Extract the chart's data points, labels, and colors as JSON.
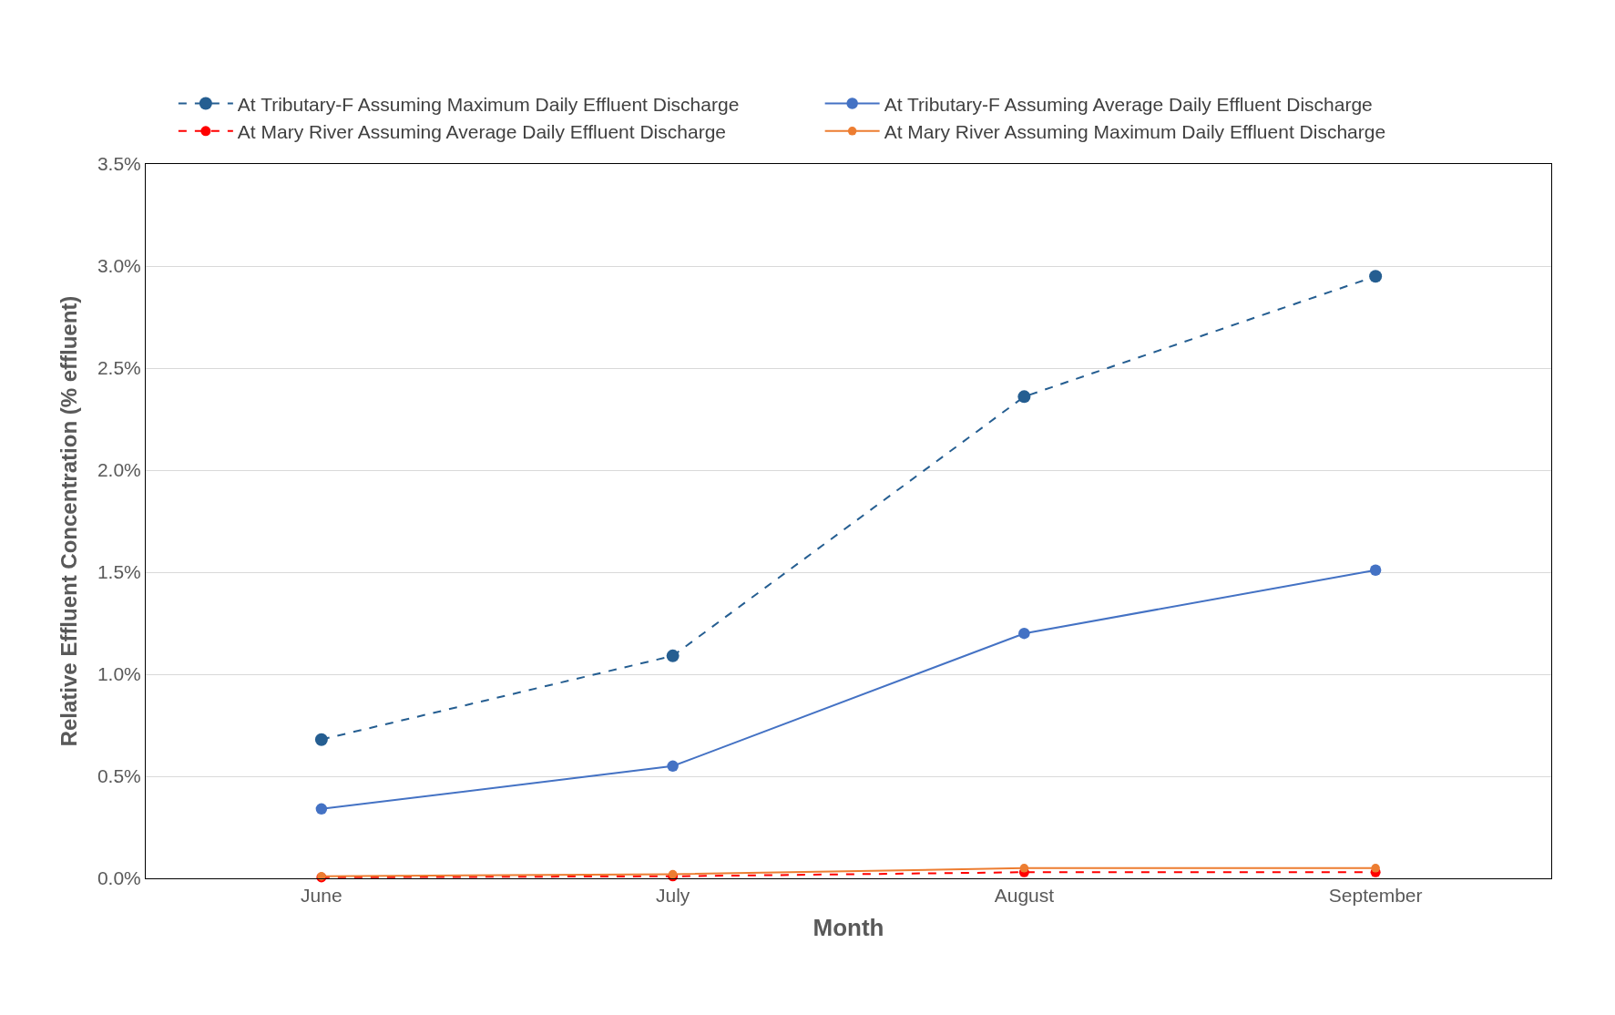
{
  "chart_data": {
    "type": "line",
    "xlabel": "Month",
    "ylabel": "Relative Effluent Concentration (% effluent)",
    "categories": [
      "June",
      "July",
      "August",
      "September"
    ],
    "series": [
      {
        "name": "At Tributary-F Assuming Maximum Daily Effluent Discharge",
        "color": "#255e91",
        "line_style": "dashed",
        "values": [
          0.68,
          1.09,
          2.36,
          2.95
        ]
      },
      {
        "name": "At Tributary-F Assuming Average Daily Effluent Discharge",
        "color": "#4472c4",
        "line_style": "solid",
        "values": [
          0.34,
          0.55,
          1.2,
          1.51
        ]
      },
      {
        "name": "At Mary River Assuming Average Daily Effluent Discharge",
        "color": "#ff0000",
        "line_style": "dashed",
        "values": [
          0.005,
          0.01,
          0.03,
          0.03
        ]
      },
      {
        "name": "At Mary River Assuming Maximum Daily Effluent Discharge",
        "color": "#ed7d31",
        "line_style": "solid",
        "values": [
          0.01,
          0.02,
          0.05,
          0.05
        ]
      }
    ],
    "ylim": [
      0,
      3.5
    ],
    "yticks": [
      {
        "value": 0,
        "label": "0.0%"
      },
      {
        "value": 0.5,
        "label": "0.5%"
      },
      {
        "value": 1,
        "label": "1.0%"
      },
      {
        "value": 1.5,
        "label": "1.5%"
      },
      {
        "value": 2,
        "label": "2.0%"
      },
      {
        "value": 2.5,
        "label": "2.5%"
      },
      {
        "value": 3,
        "label": "3.0%"
      },
      {
        "value": 3.5,
        "label": "3.5%"
      }
    ],
    "grid": "y",
    "legend": "top",
    "marker": "circle"
  }
}
